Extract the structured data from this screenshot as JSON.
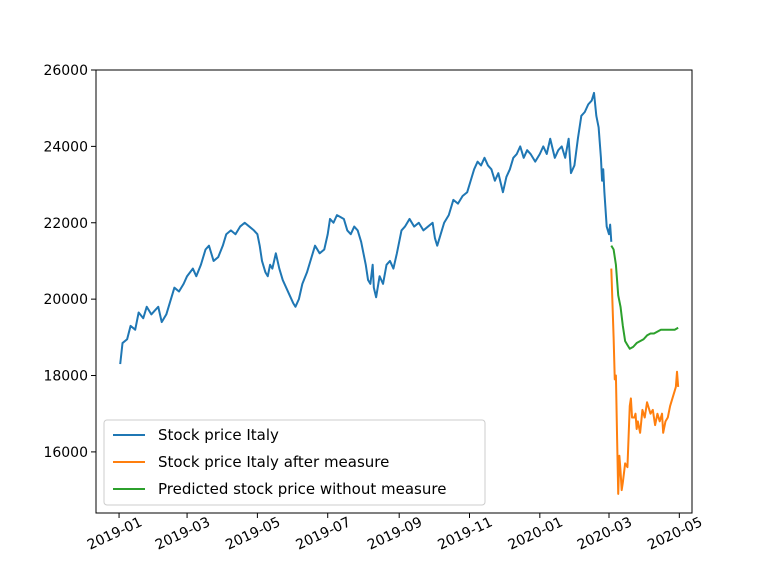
{
  "chart_data": {
    "type": "line",
    "title": "",
    "xlabel": "",
    "ylabel": "",
    "x_axis_type": "date",
    "xlim": [
      "2018-12-12",
      "2020-05-12"
    ],
    "ylim": [
      14400,
      26000
    ],
    "x_ticks": [
      "2019-01",
      "2019-03",
      "2019-05",
      "2019-07",
      "2019-09",
      "2019-11",
      "2020-01",
      "2020-03",
      "2020-05"
    ],
    "x_tick_dates": [
      "2019-01-01",
      "2019-03-01",
      "2019-05-01",
      "2019-07-01",
      "2019-09-01",
      "2019-11-01",
      "2020-01-01",
      "2020-03-01",
      "2020-05-01"
    ],
    "x_tick_rotation_deg": -25,
    "y_ticks": [
      16000,
      18000,
      20000,
      22000,
      24000,
      26000
    ],
    "y_tick_labels": [
      "16000",
      "18000",
      "20000",
      "22000",
      "24000",
      "26000"
    ],
    "grid": false,
    "legend_position": "lower-left",
    "series": [
      {
        "name": "Stock price Italy",
        "color": "#1f77b4",
        "points": [
          [
            "2019-01-02",
            18300
          ],
          [
            "2019-01-04",
            18850
          ],
          [
            "2019-01-08",
            18950
          ],
          [
            "2019-01-11",
            19300
          ],
          [
            "2019-01-15",
            19200
          ],
          [
            "2019-01-18",
            19650
          ],
          [
            "2019-01-22",
            19500
          ],
          [
            "2019-01-25",
            19800
          ],
          [
            "2019-01-29",
            19600
          ],
          [
            "2019-02-01",
            19700
          ],
          [
            "2019-02-04",
            19800
          ],
          [
            "2019-02-07",
            19400
          ],
          [
            "2019-02-11",
            19600
          ],
          [
            "2019-02-14",
            19900
          ],
          [
            "2019-02-18",
            20300
          ],
          [
            "2019-02-22",
            20200
          ],
          [
            "2019-02-26",
            20400
          ],
          [
            "2019-03-01",
            20600
          ],
          [
            "2019-03-06",
            20800
          ],
          [
            "2019-03-09",
            20600
          ],
          [
            "2019-03-13",
            20900
          ],
          [
            "2019-03-17",
            21300
          ],
          [
            "2019-03-20",
            21400
          ],
          [
            "2019-03-24",
            21000
          ],
          [
            "2019-03-28",
            21100
          ],
          [
            "2019-04-01",
            21400
          ],
          [
            "2019-04-04",
            21700
          ],
          [
            "2019-04-08",
            21800
          ],
          [
            "2019-04-12",
            21700
          ],
          [
            "2019-04-16",
            21900
          ],
          [
            "2019-04-20",
            22000
          ],
          [
            "2019-04-24",
            21900
          ],
          [
            "2019-04-28",
            21800
          ],
          [
            "2019-05-01",
            21700
          ],
          [
            "2019-05-03",
            21400
          ],
          [
            "2019-05-05",
            21000
          ],
          [
            "2019-05-08",
            20700
          ],
          [
            "2019-05-10",
            20600
          ],
          [
            "2019-05-12",
            20900
          ],
          [
            "2019-05-14",
            20800
          ],
          [
            "2019-05-17",
            21200
          ],
          [
            "2019-05-20",
            20800
          ],
          [
            "2019-05-23",
            20500
          ],
          [
            "2019-05-26",
            20300
          ],
          [
            "2019-05-29",
            20100
          ],
          [
            "2019-06-01",
            19900
          ],
          [
            "2019-06-03",
            19800
          ],
          [
            "2019-06-06",
            20000
          ],
          [
            "2019-06-09",
            20400
          ],
          [
            "2019-06-13",
            20700
          ],
          [
            "2019-06-17",
            21100
          ],
          [
            "2019-06-20",
            21400
          ],
          [
            "2019-06-24",
            21200
          ],
          [
            "2019-06-28",
            21300
          ],
          [
            "2019-07-01",
            21700
          ],
          [
            "2019-07-03",
            22100
          ],
          [
            "2019-07-06",
            22000
          ],
          [
            "2019-07-09",
            22200
          ],
          [
            "2019-07-12",
            22150
          ],
          [
            "2019-07-15",
            22100
          ],
          [
            "2019-07-18",
            21800
          ],
          [
            "2019-07-21",
            21700
          ],
          [
            "2019-07-24",
            21900
          ],
          [
            "2019-07-27",
            21800
          ],
          [
            "2019-07-30",
            21500
          ],
          [
            "2019-08-01",
            21200
          ],
          [
            "2019-08-03",
            20900
          ],
          [
            "2019-08-05",
            20500
          ],
          [
            "2019-08-07",
            20400
          ],
          [
            "2019-08-09",
            20900
          ],
          [
            "2019-08-10",
            20300
          ],
          [
            "2019-08-12",
            20050
          ],
          [
            "2019-08-15",
            20600
          ],
          [
            "2019-08-18",
            20400
          ],
          [
            "2019-08-21",
            20900
          ],
          [
            "2019-08-24",
            21000
          ],
          [
            "2019-08-27",
            20800
          ],
          [
            "2019-08-30",
            21200
          ],
          [
            "2019-09-03",
            21800
          ],
          [
            "2019-09-06",
            21900
          ],
          [
            "2019-09-10",
            22100
          ],
          [
            "2019-09-14",
            21900
          ],
          [
            "2019-09-18",
            22000
          ],
          [
            "2019-09-22",
            21800
          ],
          [
            "2019-09-26",
            21900
          ],
          [
            "2019-09-30",
            22000
          ],
          [
            "2019-10-02",
            21600
          ],
          [
            "2019-10-04",
            21400
          ],
          [
            "2019-10-07",
            21700
          ],
          [
            "2019-10-10",
            22000
          ],
          [
            "2019-10-14",
            22200
          ],
          [
            "2019-10-18",
            22600
          ],
          [
            "2019-10-22",
            22500
          ],
          [
            "2019-10-26",
            22700
          ],
          [
            "2019-10-30",
            22800
          ],
          [
            "2019-11-02",
            23100
          ],
          [
            "2019-11-05",
            23400
          ],
          [
            "2019-11-08",
            23600
          ],
          [
            "2019-11-11",
            23500
          ],
          [
            "2019-11-14",
            23700
          ],
          [
            "2019-11-17",
            23500
          ],
          [
            "2019-11-20",
            23400
          ],
          [
            "2019-11-23",
            23100
          ],
          [
            "2019-11-26",
            23300
          ],
          [
            "2019-11-30",
            22800
          ],
          [
            "2019-12-03",
            23200
          ],
          [
            "2019-12-06",
            23400
          ],
          [
            "2019-12-09",
            23700
          ],
          [
            "2019-12-12",
            23800
          ],
          [
            "2019-12-15",
            24000
          ],
          [
            "2019-12-18",
            23700
          ],
          [
            "2019-12-21",
            23900
          ],
          [
            "2019-12-24",
            23800
          ],
          [
            "2019-12-28",
            23600
          ],
          [
            "2020-01-01",
            23800
          ],
          [
            "2020-01-04",
            24000
          ],
          [
            "2020-01-07",
            23800
          ],
          [
            "2020-01-10",
            24200
          ],
          [
            "2020-01-14",
            23700
          ],
          [
            "2020-01-17",
            23900
          ],
          [
            "2020-01-20",
            24000
          ],
          [
            "2020-01-23",
            23700
          ],
          [
            "2020-01-26",
            24200
          ],
          [
            "2020-01-28",
            23300
          ],
          [
            "2020-01-31",
            23500
          ],
          [
            "2020-02-03",
            24200
          ],
          [
            "2020-02-06",
            24800
          ],
          [
            "2020-02-09",
            24900
          ],
          [
            "2020-02-12",
            25100
          ],
          [
            "2020-02-15",
            25200
          ],
          [
            "2020-02-17",
            25400
          ],
          [
            "2020-02-19",
            24800
          ],
          [
            "2020-02-21",
            24500
          ],
          [
            "2020-02-23",
            23700
          ],
          [
            "2020-02-24",
            23100
          ],
          [
            "2020-02-25",
            23400
          ],
          [
            "2020-02-26",
            22800
          ],
          [
            "2020-02-28",
            21900
          ],
          [
            "2020-03-01",
            21700
          ],
          [
            "2020-03-02",
            21950
          ],
          [
            "2020-03-03",
            21500
          ]
        ]
      },
      {
        "name": "Stock price Italy after measure",
        "color": "#ff7f0e",
        "points": [
          [
            "2020-03-03",
            20800
          ],
          [
            "2020-03-05",
            19000
          ],
          [
            "2020-03-06",
            17900
          ],
          [
            "2020-03-07",
            18000
          ],
          [
            "2020-03-08",
            16400
          ],
          [
            "2020-03-09",
            14900
          ],
          [
            "2020-03-10",
            15900
          ],
          [
            "2020-03-11",
            15500
          ],
          [
            "2020-03-12",
            15000
          ],
          [
            "2020-03-13",
            15200
          ],
          [
            "2020-03-15",
            15700
          ],
          [
            "2020-03-17",
            15600
          ],
          [
            "2020-03-19",
            17200
          ],
          [
            "2020-03-20",
            17400
          ],
          [
            "2020-03-21",
            16900
          ],
          [
            "2020-03-23",
            16900
          ],
          [
            "2020-03-24",
            17000
          ],
          [
            "2020-03-25",
            16600
          ],
          [
            "2020-03-26",
            16800
          ],
          [
            "2020-03-28",
            16500
          ],
          [
            "2020-03-30",
            17100
          ],
          [
            "2020-04-01",
            16900
          ],
          [
            "2020-04-03",
            17300
          ],
          [
            "2020-04-06",
            17000
          ],
          [
            "2020-04-08",
            17100
          ],
          [
            "2020-04-10",
            16700
          ],
          [
            "2020-04-12",
            17000
          ],
          [
            "2020-04-14",
            16800
          ],
          [
            "2020-04-16",
            17000
          ],
          [
            "2020-04-17",
            16500
          ],
          [
            "2020-04-19",
            16800
          ],
          [
            "2020-04-21",
            16900
          ],
          [
            "2020-04-23",
            17200
          ],
          [
            "2020-04-25",
            17400
          ],
          [
            "2020-04-27",
            17600
          ],
          [
            "2020-04-28",
            17700
          ],
          [
            "2020-04-29",
            18100
          ],
          [
            "2020-04-30",
            17700
          ]
        ]
      },
      {
        "name": "Predicted stock price without measure",
        "color": "#2ca02c",
        "points": [
          [
            "2020-03-03",
            21400
          ],
          [
            "2020-03-05",
            21300
          ],
          [
            "2020-03-07",
            20900
          ],
          [
            "2020-03-09",
            20100
          ],
          [
            "2020-03-11",
            19800
          ],
          [
            "2020-03-13",
            19300
          ],
          [
            "2020-03-15",
            18900
          ],
          [
            "2020-03-17",
            18800
          ],
          [
            "2020-03-19",
            18700
          ],
          [
            "2020-03-22",
            18750
          ],
          [
            "2020-03-25",
            18850
          ],
          [
            "2020-03-28",
            18900
          ],
          [
            "2020-03-31",
            18950
          ],
          [
            "2020-04-03",
            19050
          ],
          [
            "2020-04-06",
            19100
          ],
          [
            "2020-04-09",
            19100
          ],
          [
            "2020-04-12",
            19150
          ],
          [
            "2020-04-15",
            19200
          ],
          [
            "2020-04-18",
            19200
          ],
          [
            "2020-04-21",
            19200
          ],
          [
            "2020-04-24",
            19200
          ],
          [
            "2020-04-27",
            19200
          ],
          [
            "2020-04-30",
            19250
          ]
        ]
      }
    ]
  }
}
